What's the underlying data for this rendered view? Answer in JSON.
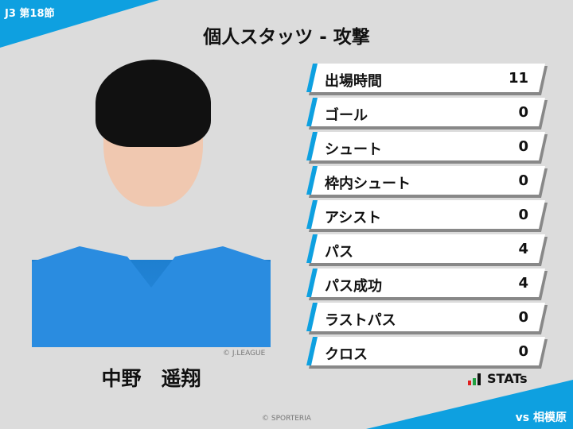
{
  "header": {
    "round": "J3 第18節",
    "title": "個人スタッツ - 攻撃",
    "opponent": "vs 相模原"
  },
  "player": {
    "name": "中野　遥翔",
    "photo_credit": "© J.LEAGUE"
  },
  "stats": [
    {
      "label": "出場時間",
      "value": "11"
    },
    {
      "label": "ゴール",
      "value": "0"
    },
    {
      "label": "シュート",
      "value": "0"
    },
    {
      "label": "枠内シュート",
      "value": "0"
    },
    {
      "label": "アシスト",
      "value": "0"
    },
    {
      "label": "パス",
      "value": "4"
    },
    {
      "label": "パス成功",
      "value": "4"
    },
    {
      "label": "ラストパス",
      "value": "0"
    },
    {
      "label": "クロス",
      "value": "0"
    }
  ],
  "brand": {
    "stats_logo": "STATs",
    "footer": "© SPORTERIA"
  },
  "colors": {
    "accent": "#0ea0e0"
  }
}
